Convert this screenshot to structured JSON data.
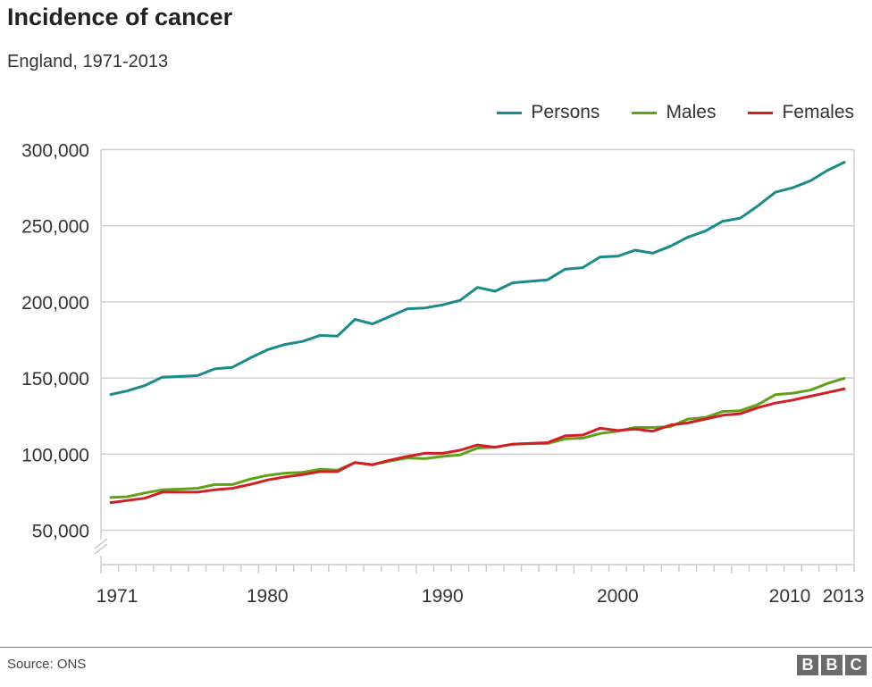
{
  "title": "Incidence of cancer",
  "subtitle": "England, 1971-2013",
  "source": "Source: ONS",
  "logo": "BBC",
  "chart_data": {
    "type": "line",
    "title": "Incidence of cancer",
    "subtitle": "England, 1971-2013",
    "xlabel": "",
    "ylabel": "",
    "x": [
      1971,
      1972,
      1973,
      1974,
      1975,
      1976,
      1977,
      1978,
      1979,
      1980,
      1981,
      1982,
      1983,
      1984,
      1985,
      1986,
      1987,
      1988,
      1989,
      1990,
      1991,
      1992,
      1993,
      1994,
      1995,
      1996,
      1997,
      1998,
      1999,
      2000,
      2001,
      2002,
      2003,
      2004,
      2005,
      2006,
      2007,
      2008,
      2009,
      2010,
      2011,
      2012,
      2013
    ],
    "x_tick_labels": [
      "1971",
      "1980",
      "1990",
      "2000",
      "2010",
      "2013"
    ],
    "y_ticks": [
      50000,
      100000,
      150000,
      200000,
      250000,
      300000
    ],
    "y_tick_labels": [
      "50,000",
      "100,000",
      "150,000",
      "200,000",
      "250,000",
      "300,000"
    ],
    "ylim": [
      50000,
      300000
    ],
    "y_axis_break": true,
    "grid": true,
    "legend_position": "top-right",
    "series": [
      {
        "name": "Persons",
        "color": "#1a8a8a",
        "values": [
          139000,
          141500,
          145000,
          150500,
          151000,
          151500,
          156000,
          157000,
          163000,
          168500,
          172000,
          174000,
          178000,
          177500,
          188500,
          185500,
          190500,
          195500,
          196000,
          198000,
          201000,
          209500,
          207000,
          212500,
          213500,
          214500,
          221500,
          222500,
          229500,
          230000,
          234000,
          232000,
          236500,
          242500,
          246500,
          253000,
          255000,
          263000,
          272000,
          275000,
          279500,
          286500,
          292000
        ]
      },
      {
        "name": "Males",
        "color": "#5fa21a",
        "values": [
          71500,
          72000,
          74500,
          76500,
          77000,
          77500,
          80000,
          80000,
          83500,
          86000,
          87500,
          88000,
          90000,
          89500,
          94500,
          93000,
          95500,
          97500,
          97000,
          98500,
          99500,
          104000,
          104500,
          106500,
          107000,
          107000,
          110000,
          110500,
          113500,
          115000,
          117500,
          117500,
          118000,
          123000,
          124000,
          128000,
          128500,
          132500,
          139000,
          140000,
          142000,
          146500,
          150000
        ]
      },
      {
        "name": "Females",
        "color": "#d11f26",
        "values": [
          68000,
          69500,
          71000,
          75000,
          75000,
          75000,
          76500,
          77500,
          80000,
          83000,
          85000,
          86500,
          88500,
          88500,
          94500,
          93000,
          96000,
          98500,
          100500,
          100500,
          102500,
          106000,
          104500,
          106500,
          107000,
          107500,
          112000,
          112500,
          117000,
          115500,
          116500,
          115000,
          119000,
          120500,
          123000,
          125500,
          126500,
          130500,
          133500,
          135500,
          138000,
          140500,
          143000
        ]
      }
    ]
  }
}
